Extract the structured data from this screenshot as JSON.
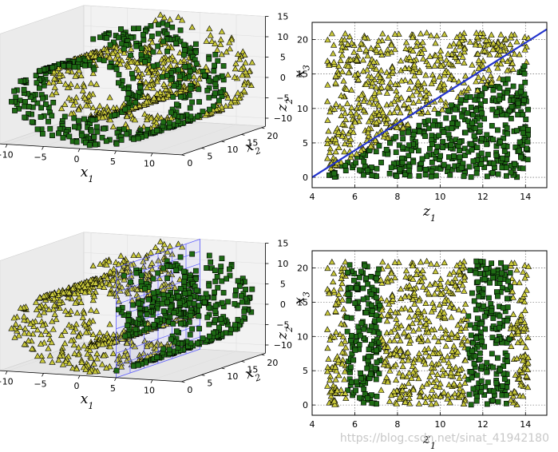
{
  "watermark": "https://blog.csdn.net/sinat_41942180",
  "colors": {
    "triangle_fill": "#c9c93a",
    "square_fill": "#1e6b14",
    "marker_edge": "#000000",
    "boundary_line": "#2233cc",
    "plane_grid": "#5a5aff"
  },
  "chart_data": [
    {
      "id": "top-left-3d",
      "type": "scatter",
      "projection": "3d",
      "description_of_shape": "swiss roll",
      "x_ticks": [
        "−10",
        "−5",
        "0",
        "5",
        "10"
      ],
      "y_ticks": [
        "0",
        "5",
        "10",
        "15",
        "20"
      ],
      "z_ticks": [
        "−10",
        "−5",
        "0",
        "5",
        "10",
        "15"
      ],
      "xlabel_base": "x",
      "xlabel_sub": "1",
      "ylabel_base": "x",
      "ylabel_sub": "2",
      "zlabel_base": "x",
      "zlabel_sub": "3",
      "xlim": [
        -11,
        14
      ],
      "ylim": [
        0,
        21
      ],
      "zlim": [
        -12,
        15
      ],
      "series": [
        {
          "marker": "triangle",
          "rule": "t < 6 + 0.6*(x2 - 3)  (i.e. z1 < 0.6*z2 + 4.2)"
        },
        {
          "marker": "square",
          "rule": "otherwise"
        }
      ]
    },
    {
      "id": "top-right-2d",
      "type": "scatter",
      "x_ticks": [
        "4",
        "6",
        "8",
        "10",
        "12",
        "14"
      ],
      "y_ticks": [
        "0",
        "5",
        "10",
        "15",
        "20"
      ],
      "xlabel_base": "z",
      "xlabel_sub": "1",
      "ylabel_base": "z",
      "ylabel_sub": "2",
      "xlim": [
        4,
        15
      ],
      "ylim": [
        -1.5,
        22.5
      ],
      "grid": true,
      "boundary_line": {
        "x": [
          4,
          15
        ],
        "y": [
          0,
          21.5
        ]
      },
      "series": [
        {
          "marker": "triangle",
          "rule": "z2 above line"
        },
        {
          "marker": "square",
          "rule": "z2 below line"
        }
      ]
    },
    {
      "id": "bottom-left-3d",
      "type": "scatter",
      "projection": "3d",
      "x_ticks": [
        "−10",
        "−5",
        "0",
        "5",
        "10"
      ],
      "y_ticks": [
        "0",
        "5",
        "10",
        "15",
        "20"
      ],
      "z_ticks": [
        "−10",
        "−5",
        "0",
        "5",
        "10",
        "15"
      ],
      "xlabel_base": "x",
      "xlabel_sub": "1",
      "ylabel_base": "x",
      "ylabel_sub": "2",
      "zlabel_base": "x",
      "zlabel_sub": "3",
      "xlim": [
        -11,
        14
      ],
      "ylim": [
        0,
        21
      ],
      "zlim": [
        -12,
        15
      ],
      "decision_plane": {
        "x1": 5
      },
      "series": [
        {
          "marker": "triangle",
          "rule": "x1 < 5"
        },
        {
          "marker": "square",
          "rule": "x1 >= 5"
        }
      ]
    },
    {
      "id": "bottom-right-2d",
      "type": "scatter",
      "x_ticks": [
        "4",
        "6",
        "8",
        "10",
        "12",
        "14"
      ],
      "y_ticks": [
        "0",
        "5",
        "10",
        "15",
        "20"
      ],
      "xlabel_base": "z",
      "xlabel_sub": "1",
      "ylabel_base": "z",
      "ylabel_sub": "2",
      "xlim": [
        4,
        15
      ],
      "ylim": [
        -1.5,
        22.5
      ],
      "grid": true,
      "series": [
        {
          "marker": "square",
          "rule": "5.6 < z1 < 7.2 or 11.3 < z1 < 13.3"
        },
        {
          "marker": "triangle",
          "rule": "otherwise"
        }
      ]
    }
  ]
}
